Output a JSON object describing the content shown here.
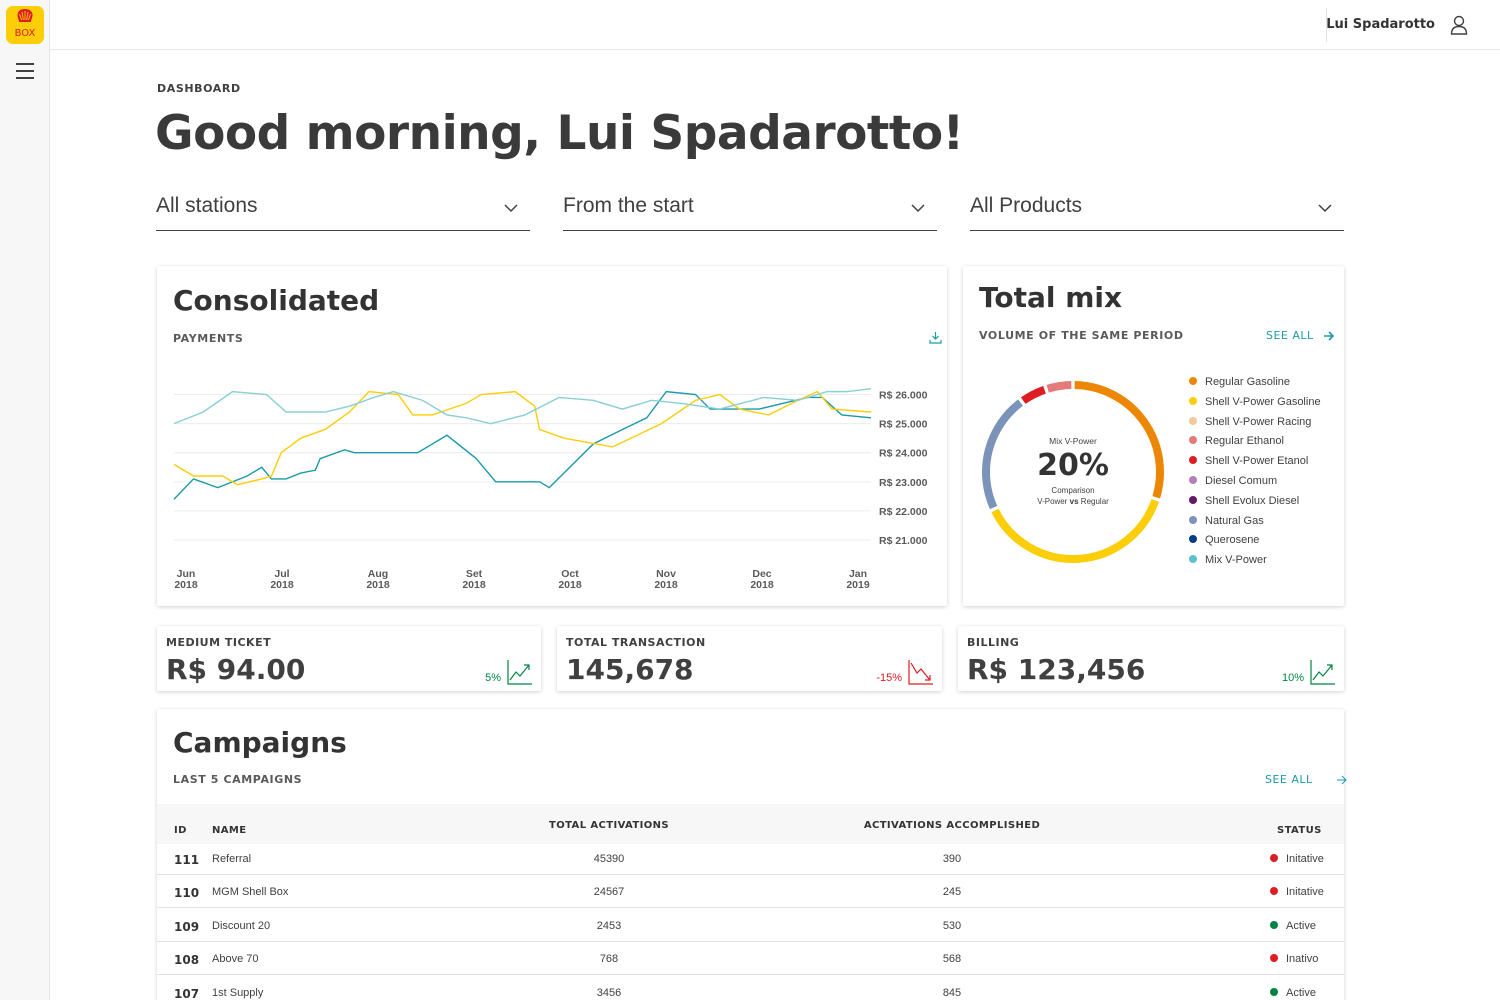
{
  "brand": {
    "logo_text": "BOX",
    "accent": "#fbce07",
    "brand_red": "#dd1d21"
  },
  "header": {
    "user_name": "Lui Spadarotto"
  },
  "page": {
    "breadcrumb": "DASHBOARD",
    "greeting": "Good morning, Lui Spadarotto!"
  },
  "filters": [
    {
      "value": "All stations"
    },
    {
      "value": "From the start"
    },
    {
      "value": "All Products"
    }
  ],
  "consolidated": {
    "title": "Consolidated",
    "subtitle": "PAYMENTS",
    "chart_data": {
      "type": "line",
      "categories": [
        "Jun\n2018",
        "Jul\n2018",
        "Aug\n2018",
        "Set\n2018",
        "Oct\n2018",
        "Nov\n2018",
        "Dec\n2018",
        "Jan\n2019"
      ],
      "x_tick_labels": [
        {
          "month": "Jun",
          "year": "2018"
        },
        {
          "month": "Jul",
          "year": "2018"
        },
        {
          "month": "Aug",
          "year": "2018"
        },
        {
          "month": "Set",
          "year": "2018"
        },
        {
          "month": "Oct",
          "year": "2018"
        },
        {
          "month": "Nov",
          "year": "2018"
        },
        {
          "month": "Dec",
          "year": "2018"
        },
        {
          "month": "Jan",
          "year": "2019"
        }
      ],
      "y_tick_labels": [
        "R$ 26.000",
        "R$ 25.000",
        "R$ 24.000",
        "R$ 23.000",
        "R$ 22.000",
        "R$ 21.000"
      ],
      "y_ticks": [
        26000,
        25000,
        24000,
        23000,
        22000,
        21000
      ],
      "ylim": [
        21000,
        26500
      ],
      "xlim": [
        0,
        7.15
      ],
      "series": [
        {
          "color": "#1b9aaa",
          "points": [
            [
              0,
              22400
            ],
            [
              0.2,
              23100
            ],
            [
              0.45,
              22800
            ],
            [
              0.75,
              23200
            ],
            [
              0.9,
              23500
            ],
            [
              1.0,
              23100
            ],
            [
              1.15,
              23100
            ],
            [
              1.3,
              23300
            ],
            [
              1.45,
              23400
            ],
            [
              1.5,
              23800
            ],
            [
              1.75,
              24100
            ],
            [
              1.85,
              24000
            ],
            [
              2.5,
              24000
            ],
            [
              2.8,
              24600
            ],
            [
              3.1,
              23800
            ],
            [
              3.3,
              23000
            ],
            [
              3.75,
              23000
            ],
            [
              3.85,
              22800
            ],
            [
              4.3,
              24300
            ],
            [
              4.6,
              24800
            ],
            [
              4.85,
              25200
            ],
            [
              5.05,
              26100
            ],
            [
              5.35,
              26000
            ],
            [
              5.5,
              25500
            ],
            [
              6.0,
              25500
            ],
            [
              6.5,
              25900
            ],
            [
              6.65,
              25900
            ],
            [
              6.85,
              25300
            ],
            [
              7.15,
              25200
            ]
          ]
        },
        {
          "color": "#fbce07",
          "points": [
            [
              0,
              23600
            ],
            [
              0.2,
              23200
            ],
            [
              0.5,
              23200
            ],
            [
              0.65,
              22900
            ],
            [
              0.9,
              23100
            ],
            [
              1.0,
              23200
            ],
            [
              1.1,
              24000
            ],
            [
              1.3,
              24500
            ],
            [
              1.55,
              24800
            ],
            [
              1.8,
              25400
            ],
            [
              2.0,
              26100
            ],
            [
              2.3,
              26000
            ],
            [
              2.45,
              25300
            ],
            [
              2.65,
              25300
            ],
            [
              3.0,
              25700
            ],
            [
              3.15,
              26000
            ],
            [
              3.5,
              26100
            ],
            [
              3.7,
              25600
            ],
            [
              3.75,
              24800
            ],
            [
              4.0,
              24500
            ],
            [
              4.5,
              24200
            ],
            [
              5.0,
              25000
            ],
            [
              5.35,
              25800
            ],
            [
              5.6,
              26000
            ],
            [
              5.8,
              25500
            ],
            [
              6.1,
              25300
            ],
            [
              6.4,
              25800
            ],
            [
              6.6,
              26100
            ],
            [
              6.75,
              25500
            ],
            [
              7.15,
              25400
            ]
          ]
        },
        {
          "color": "#89cfd6",
          "points": [
            [
              0,
              25000
            ],
            [
              0.3,
              25400
            ],
            [
              0.6,
              26100
            ],
            [
              0.95,
              26000
            ],
            [
              1.15,
              25400
            ],
            [
              1.55,
              25400
            ],
            [
              1.8,
              25600
            ],
            [
              2.05,
              25900
            ],
            [
              2.25,
              26100
            ],
            [
              2.55,
              25800
            ],
            [
              2.8,
              25300
            ],
            [
              3.0,
              25200
            ],
            [
              3.25,
              25000
            ],
            [
              3.6,
              25300
            ],
            [
              3.95,
              25900
            ],
            [
              4.3,
              25800
            ],
            [
              4.6,
              25500
            ],
            [
              4.9,
              25800
            ],
            [
              5.2,
              25700
            ],
            [
              5.6,
              25500
            ],
            [
              6.05,
              25900
            ],
            [
              6.4,
              25800
            ],
            [
              6.7,
              26100
            ],
            [
              6.9,
              26100
            ],
            [
              7.15,
              26200
            ]
          ]
        }
      ]
    }
  },
  "total_mix": {
    "title": "Total mix",
    "subtitle": "VOLUME OF THE SAME PERIOD",
    "see_all": "SEE ALL",
    "center": {
      "label": "Mix V-Power",
      "value": "20%",
      "caption_line1": "Comparison",
      "caption_pre": "V-Power ",
      "caption_bold": "vs",
      "caption_post": " Regular"
    },
    "chart_data": {
      "type": "pie",
      "title": "Mix V-Power",
      "slices": [
        {
          "label": "Regular Gasoline",
          "value": 30,
          "color": "#eb8705"
        },
        {
          "label": "Shell V-Power Gasoline",
          "value": 38,
          "color": "#fbce07"
        },
        {
          "label": "Natural Gas",
          "value": 22,
          "color": "#7b93b8"
        },
        {
          "label": "Shell V-Power Etanol",
          "value": 5,
          "color": "#dd1d21"
        },
        {
          "label": "Regular Ethanol",
          "value": 5,
          "color": "#e67979"
        }
      ]
    },
    "legend": [
      {
        "label": "Regular Gasoline",
        "color": "#eb8705"
      },
      {
        "label": "Shell V-Power Gasoline",
        "color": "#fbce07"
      },
      {
        "label": "Shell V-Power Racing",
        "color": "#f3c89b"
      },
      {
        "label": "Regular Ethanol",
        "color": "#e67979"
      },
      {
        "label": "Shell V-Power Etanol",
        "color": "#dd1d21"
      },
      {
        "label": "Diesel Comum",
        "color": "#b182b5"
      },
      {
        "label": "Shell Evolux Diesel",
        "color": "#641964"
      },
      {
        "label": "Natural Gas",
        "color": "#7b93b8"
      },
      {
        "label": "Querosene",
        "color": "#003c88"
      },
      {
        "label": "Mix V-Power",
        "color": "#5dc1cd"
      }
    ]
  },
  "kpis": [
    {
      "label": "MEDIUM TICKET",
      "value": "R$ 94.00",
      "change": "5%",
      "trend": "up",
      "color": "#008443"
    },
    {
      "label": "TOTAL TRANSACTION",
      "value": "145,678",
      "change": "-15%",
      "trend": "down",
      "color": "#dd1d21"
    },
    {
      "label": "BILLING",
      "value": "R$ 123,456",
      "change": "10%",
      "trend": "up",
      "color": "#008443"
    }
  ],
  "campaigns": {
    "title": "Campaigns",
    "subtitle": "LAST 5 CAMPAIGNS",
    "see_all": "SEE ALL",
    "columns": {
      "id": "ID",
      "name": "NAME",
      "total": "TOTAL ACTIVATIONS",
      "accomplished": "ACTIVATIONS ACCOMPLISHED",
      "status": "STATUS"
    },
    "rows": [
      {
        "id": "111",
        "name": "Referral",
        "total": "45390",
        "accomplished": "390",
        "status": "Initative",
        "status_color": "#dd1d21"
      },
      {
        "id": "110",
        "name": "MGM Shell Box",
        "total": "24567",
        "accomplished": "245",
        "status": "Initative",
        "status_color": "#dd1d21"
      },
      {
        "id": "109",
        "name": "Discount 20",
        "total": "2453",
        "accomplished": "530",
        "status": "Active",
        "status_color": "#008443"
      },
      {
        "id": "108",
        "name": "Above 70",
        "total": "768",
        "accomplished": "568",
        "status": "Inativo",
        "status_color": "#dd1d21"
      },
      {
        "id": "107",
        "name": "1st Supply",
        "total": "3456",
        "accomplished": "845",
        "status": "Active",
        "status_color": "#008443"
      }
    ]
  }
}
